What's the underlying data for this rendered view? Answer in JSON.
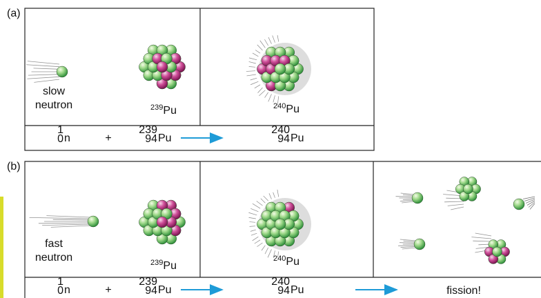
{
  "panel_a": {
    "label": "(a)",
    "neutron_label": [
      "slow",
      "neutron"
    ],
    "target": {
      "mass": "239",
      "symbol": "Pu"
    },
    "product": {
      "mass": "240",
      "symbol": "Pu"
    },
    "equation": {
      "neutron": {
        "mass": "1",
        "number": "0",
        "symbol": "n"
      },
      "plus": "+",
      "target": {
        "mass": "239",
        "number": "94",
        "symbol": "Pu"
      },
      "product": {
        "mass": "240",
        "number": "94",
        "symbol": "Pu"
      }
    }
  },
  "panel_b": {
    "label": "(b)",
    "neutron_label": [
      "fast",
      "neutron"
    ],
    "target": {
      "mass": "239",
      "symbol": "Pu"
    },
    "product": {
      "mass": "240",
      "symbol": "Pu"
    },
    "equation": {
      "neutron": {
        "mass": "1",
        "number": "0",
        "symbol": "n"
      },
      "plus": "+",
      "target": {
        "mass": "239",
        "number": "94",
        "symbol": "Pu"
      },
      "product": {
        "mass": "240",
        "number": "94",
        "symbol": "Pu"
      },
      "result": "fission!"
    }
  }
}
